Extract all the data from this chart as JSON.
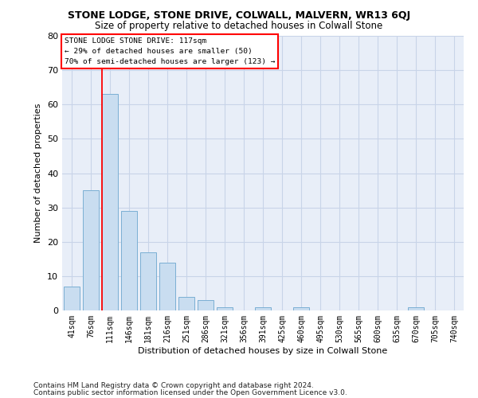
{
  "title": "STONE LODGE, STONE DRIVE, COLWALL, MALVERN, WR13 6QJ",
  "subtitle": "Size of property relative to detached houses in Colwall Stone",
  "xlabel": "Distribution of detached houses by size in Colwall Stone",
  "ylabel": "Number of detached properties",
  "footer1": "Contains HM Land Registry data © Crown copyright and database right 2024.",
  "footer2": "Contains public sector information licensed under the Open Government Licence v3.0.",
  "bin_labels": [
    "41sqm",
    "76sqm",
    "111sqm",
    "146sqm",
    "181sqm",
    "216sqm",
    "251sqm",
    "286sqm",
    "321sqm",
    "356sqm",
    "391sqm",
    "425sqm",
    "460sqm",
    "495sqm",
    "530sqm",
    "565sqm",
    "600sqm",
    "635sqm",
    "670sqm",
    "705sqm",
    "740sqm"
  ],
  "bar_values": [
    7,
    35,
    63,
    29,
    17,
    14,
    4,
    3,
    1,
    0,
    1,
    0,
    1,
    0,
    0,
    0,
    0,
    0,
    1,
    0,
    0
  ],
  "bar_color": "#c9ddf0",
  "bar_edgecolor": "#7bafd4",
  "grid_color": "#c8d4e8",
  "background_color": "#e8eef8",
  "vline_color": "red",
  "vline_index": 1.6,
  "annotation_text_line1": "STONE LODGE STONE DRIVE: 117sqm",
  "annotation_text_line2": "← 29% of detached houses are smaller (50)",
  "annotation_text_line3": "70% of semi-detached houses are larger (123) →",
  "ylim": [
    0,
    80
  ],
  "yticks": [
    0,
    10,
    20,
    30,
    40,
    50,
    60,
    70,
    80
  ],
  "title_fontsize": 9,
  "subtitle_fontsize": 8.5,
  "ylabel_fontsize": 8,
  "xlabel_fontsize": 8,
  "tick_fontsize": 7,
  "footer_fontsize": 6.5
}
